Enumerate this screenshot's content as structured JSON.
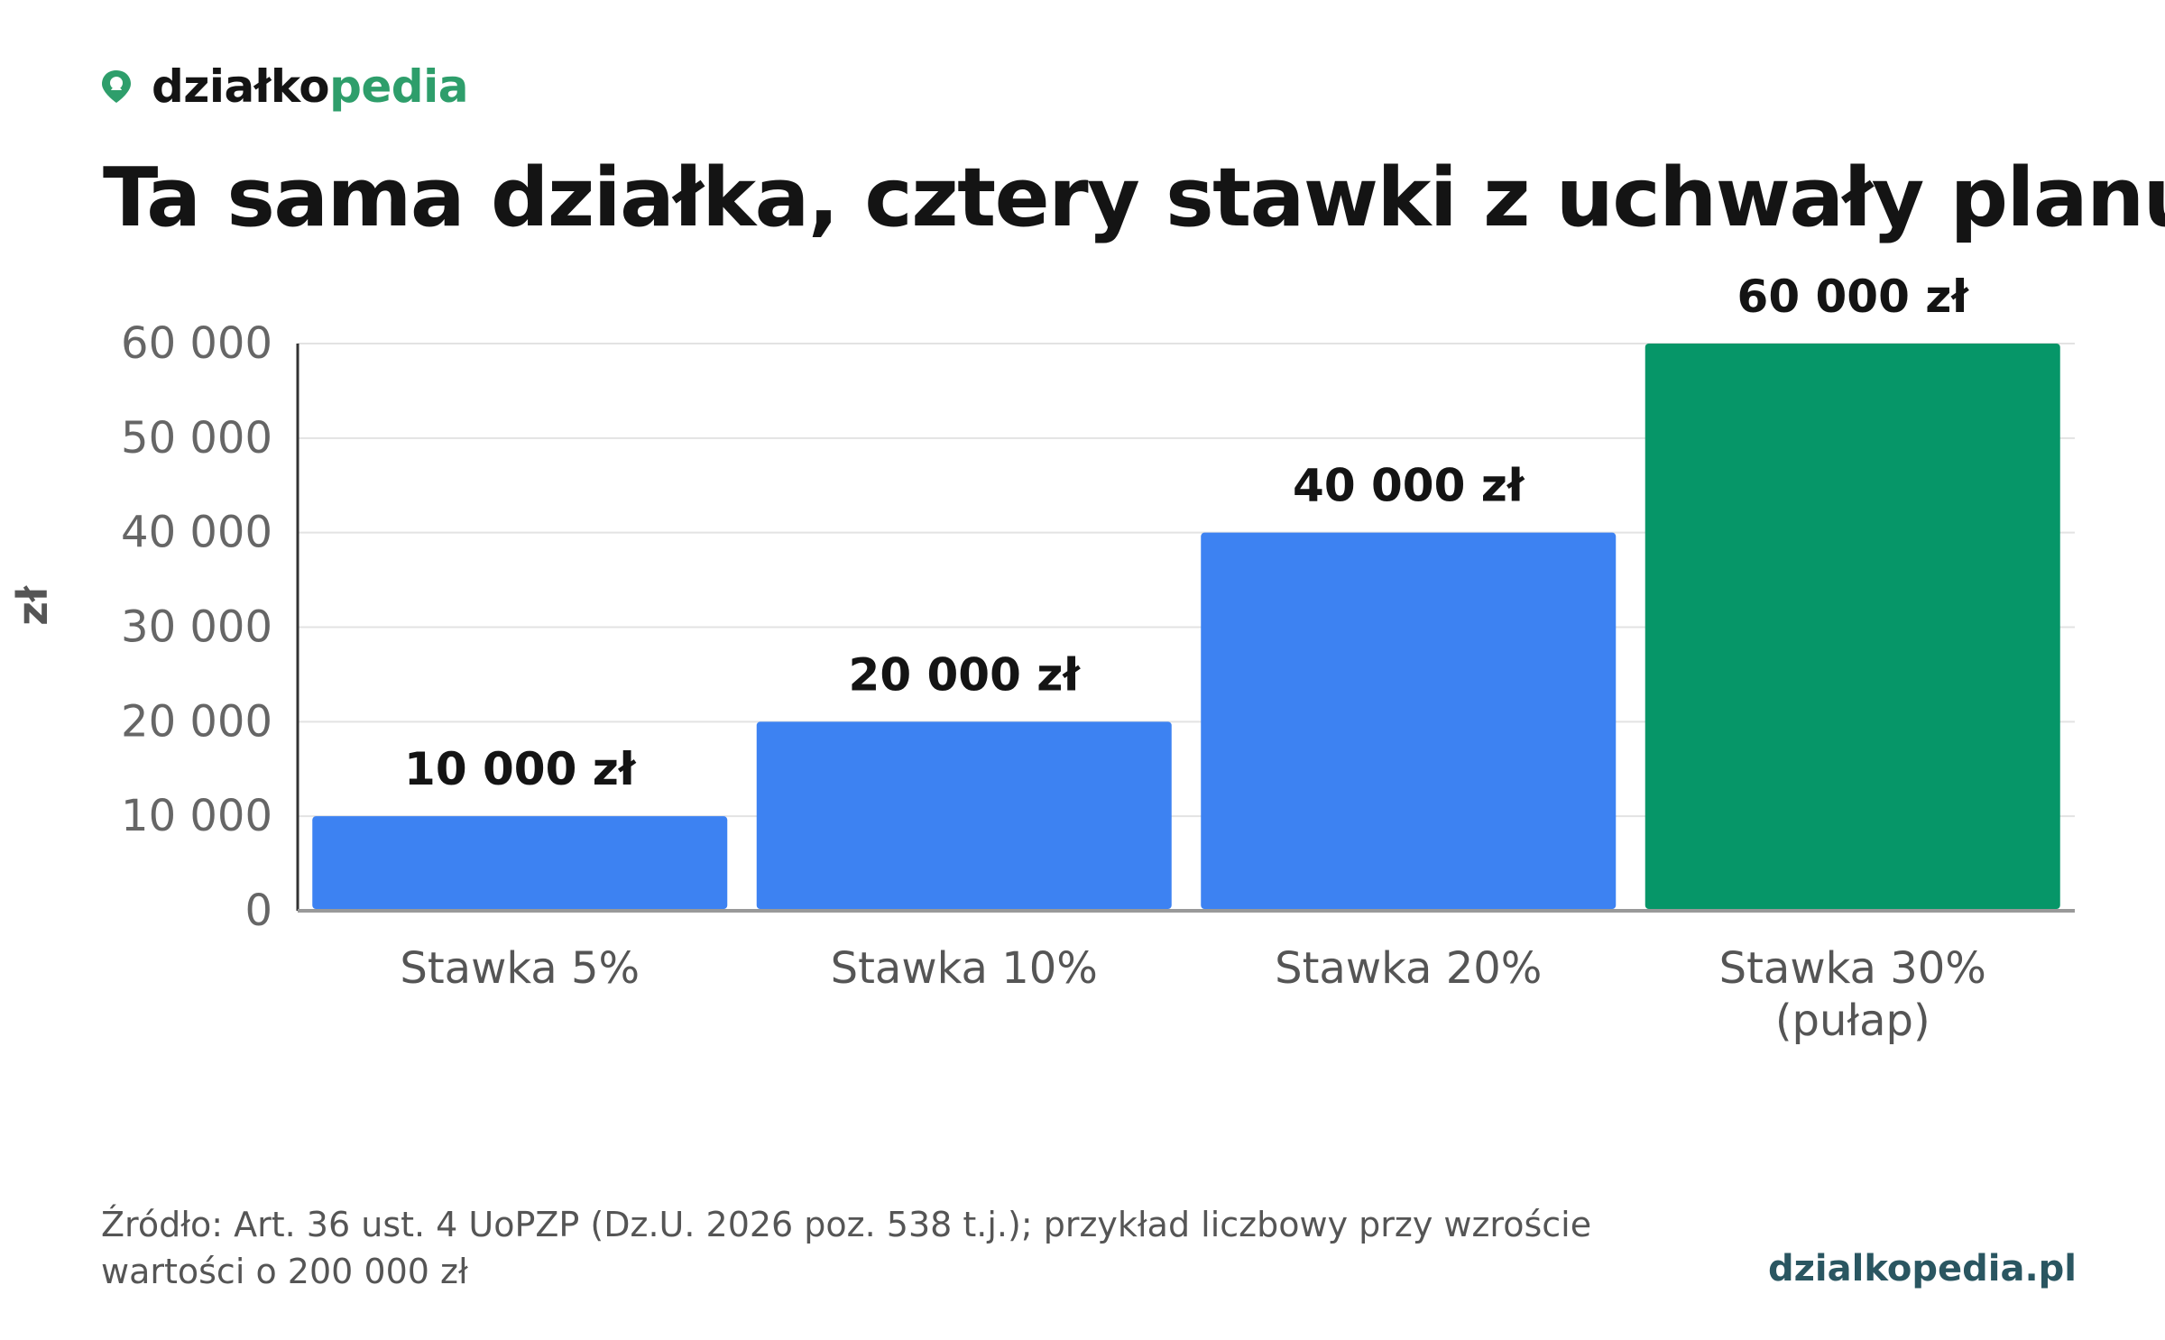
{
  "brand": {
    "name_dark": "działko",
    "name_accent": "pedia",
    "icon": "map-pin-icon",
    "accent_color": "#2e9e6b"
  },
  "site_url": "dzialkopedia.pl",
  "source_note": "Źródło: Art. 36 ust. 4 UoPZP (Dz.U. 2026 poz. 538 t.j.); przykład liczbowy przy wzroście wartości o 200 000 zł",
  "chart_data": {
    "type": "bar",
    "title": "Ta sama działka, cztery stawki z uchwały planu",
    "xlabel": "",
    "ylabel": "zł",
    "ylim": [
      0,
      60000
    ],
    "yticks": [
      0,
      10000,
      20000,
      30000,
      40000,
      50000,
      60000
    ],
    "ytick_labels": [
      "0",
      "10 000",
      "20 000",
      "30 000",
      "40 000",
      "50 000",
      "60 000"
    ],
    "grid": true,
    "categories": [
      [
        "Stawka 5%"
      ],
      [
        "Stawka 10%"
      ],
      [
        "Stawka 20%"
      ],
      [
        "Stawka 30%",
        "(pułap)"
      ]
    ],
    "values": [
      10000,
      20000,
      40000,
      60000
    ],
    "data_labels": [
      "10 000 zł",
      "20 000 zł",
      "40 000 zł",
      "60 000 zł"
    ],
    "colors": [
      "#3d82f2",
      "#3d82f2",
      "#3d82f2",
      "#069668"
    ]
  }
}
